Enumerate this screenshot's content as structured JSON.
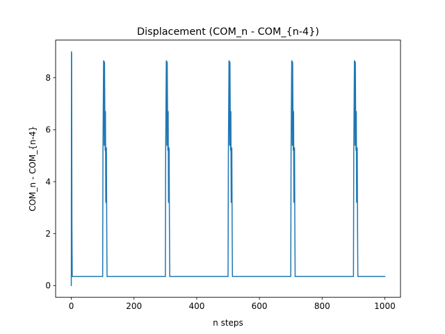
{
  "chart_data": {
    "type": "line",
    "title": "Displacement (COM_n - COM_{n-4})",
    "xlabel": "n steps",
    "ylabel": "COM_n - COM_{n-4}",
    "xlim": [
      -50,
      1050
    ],
    "ylim": [
      -0.45,
      9.45
    ],
    "xticks": [
      0,
      200,
      400,
      600,
      800,
      1000
    ],
    "yticks": [
      0,
      2,
      4,
      6,
      8
    ],
    "grid": false,
    "color": "#1f77b4",
    "series": [
      {
        "x": [
          0,
          0.5,
          1,
          2,
          3,
          4,
          5,
          100,
          101,
          103,
          104,
          105,
          106,
          107,
          108,
          109,
          110,
          111,
          112,
          113,
          114,
          115,
          300,
          301,
          303,
          304,
          305,
          306,
          307,
          308,
          309,
          310,
          311,
          312,
          313,
          314,
          315,
          500,
          501,
          503,
          504,
          505,
          506,
          507,
          508,
          509,
          510,
          511,
          512,
          513,
          514,
          515,
          700,
          701,
          703,
          704,
          705,
          706,
          707,
          708,
          709,
          710,
          711,
          712,
          713,
          714,
          715,
          900,
          901,
          903,
          904,
          905,
          906,
          907,
          908,
          909,
          910,
          911,
          912,
          913,
          914,
          915,
          1000
        ],
        "y": [
          0,
          9.0,
          8.9,
          2.3,
          0.35,
          0.35,
          0.35,
          0.35,
          5.2,
          8.65,
          8.65,
          5.4,
          8.6,
          6.6,
          5.2,
          6.7,
          3.2,
          5.3,
          5.3,
          2.3,
          0.35,
          0.35,
          0.35,
          5.2,
          8.65,
          8.65,
          5.4,
          8.6,
          6.6,
          5.2,
          6.7,
          3.2,
          5.3,
          5.3,
          2.3,
          0.35,
          0.35,
          0.35,
          5.2,
          8.65,
          8.65,
          5.4,
          8.6,
          6.6,
          5.2,
          6.7,
          3.2,
          5.3,
          5.3,
          2.3,
          0.35,
          0.35,
          0.35,
          5.2,
          8.65,
          8.65,
          5.4,
          8.6,
          6.6,
          5.2,
          6.7,
          3.2,
          5.3,
          5.3,
          2.3,
          0.35,
          0.35,
          0.35,
          5.2,
          8.65,
          8.65,
          5.4,
          8.6,
          6.6,
          5.2,
          6.7,
          3.2,
          5.3,
          5.3,
          2.3,
          0.35,
          0.35,
          0.35
        ]
      }
    ]
  }
}
